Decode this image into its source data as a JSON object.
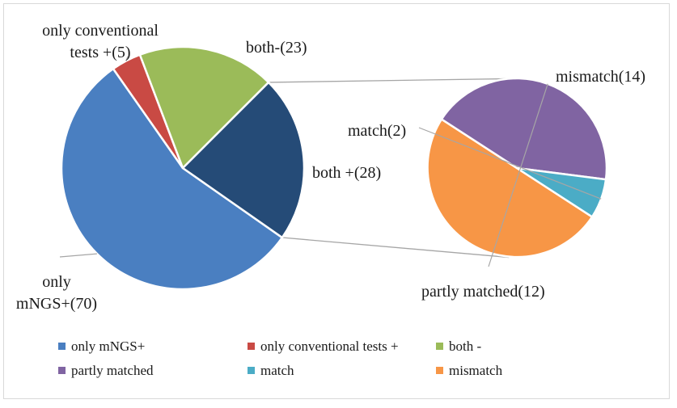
{
  "chart_data": [
    {
      "type": "pie",
      "categories": [
        "only mNGS+",
        "only conventional tests +",
        "both -",
        "both +"
      ],
      "values": [
        70,
        5,
        23,
        28
      ],
      "colors": [
        "#4a7fc1",
        "#c94a44",
        "#9bbb59",
        "#254b77"
      ],
      "data_labels": [
        "only mNGS+(70)",
        "only conventional tests +(5)",
        "both-(23)",
        "both +(28)"
      ],
      "exploded_slice": "both +"
    },
    {
      "type": "pie",
      "categories": [
        "mismatch",
        "partly matched",
        "match"
      ],
      "values": [
        14,
        12,
        2
      ],
      "colors": [
        "#f79646",
        "#8064a2",
        "#4bacc6"
      ],
      "data_labels": [
        "mismatch(14)",
        "partly matched(12)",
        "match(2)"
      ]
    }
  ],
  "legend": {
    "placement": "bottom",
    "items": [
      {
        "label": "only mNGS+",
        "color": "#4a7fc1"
      },
      {
        "label": "only conventional tests +",
        "color": "#c94a44"
      },
      {
        "label": "both -",
        "color": "#9bbb59"
      },
      {
        "label": "partly matched",
        "color": "#8064a2"
      },
      {
        "label": "match",
        "color": "#4bacc6"
      },
      {
        "label": "mismatch",
        "color": "#f79646"
      }
    ]
  }
}
